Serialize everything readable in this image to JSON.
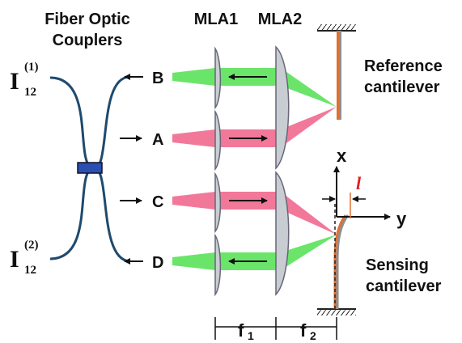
{
  "title_line1": "Fiber Optic",
  "title_line2": "Couplers",
  "mla1": "MLA1",
  "mla2": "MLA2",
  "ref_line1": "Reference",
  "ref_line2": "cantilever",
  "sens_line1": "Sensing",
  "sens_line2": "cantilever",
  "port_b": "B",
  "port_a": "A",
  "port_c": "C",
  "port_d": "D",
  "i_main": "I",
  "i_sub": "12",
  "i1_sup": "(1)",
  "i2_sup": "(2)",
  "axis_x": "x",
  "axis_y": "y",
  "deflection": "l",
  "f1_main": "f",
  "f1_sub": "1",
  "f2_main": "f",
  "f2_sub": "2",
  "colors": {
    "red_beam": "#f06088",
    "green_beam": "#50e050",
    "lens": "#c8cdd2",
    "coupler": "#2a4fb0",
    "fiber": "#1e4a6e",
    "cantilever": "#e07030"
  }
}
